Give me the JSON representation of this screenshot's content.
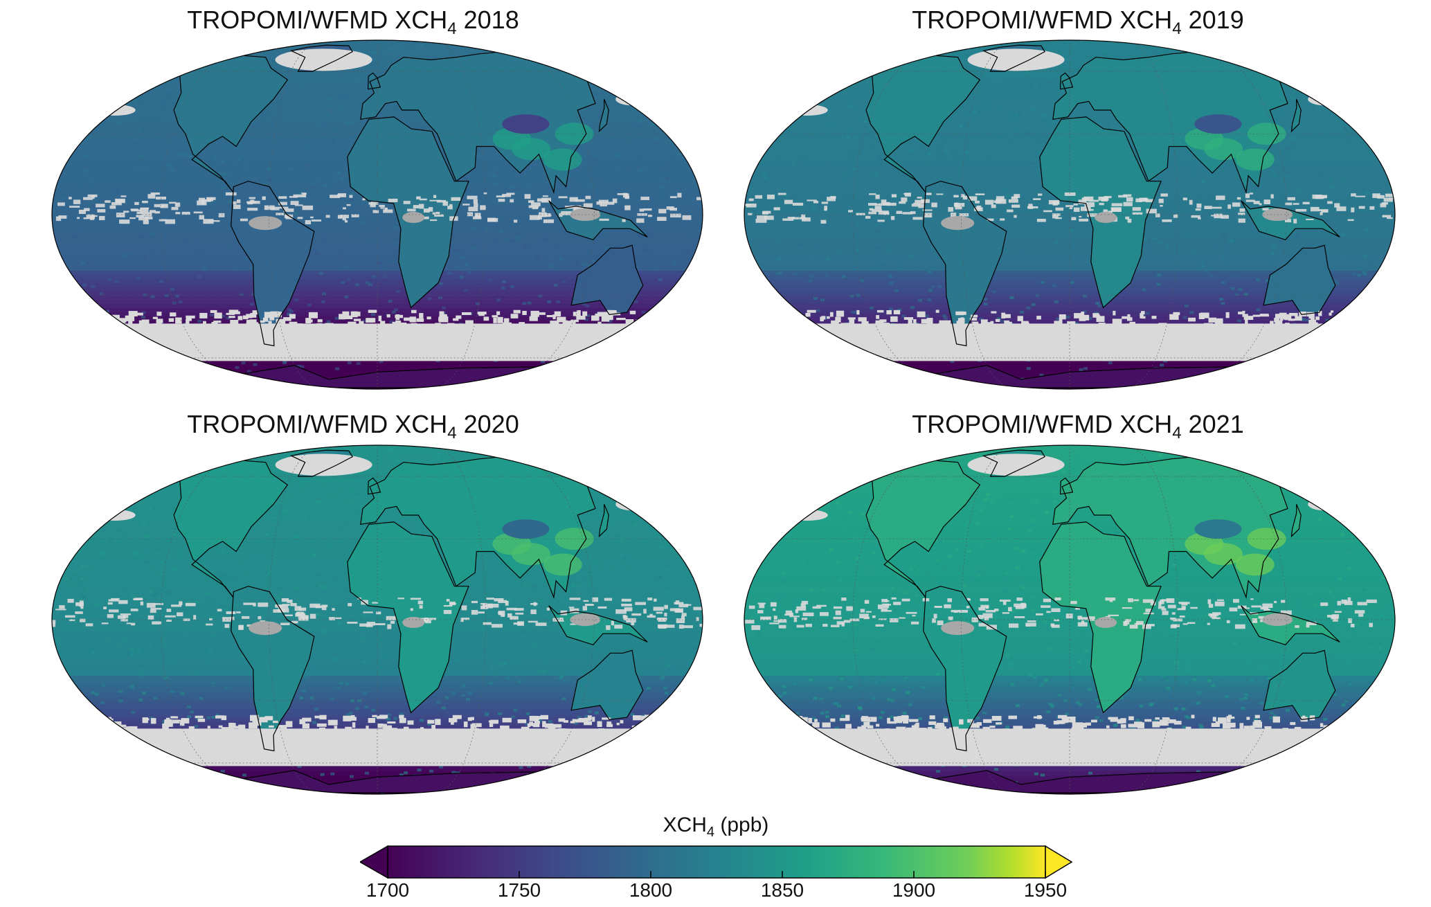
{
  "panels": [
    {
      "title_prefix": "TROPOMI/WFMD XCH",
      "title_sub": "4",
      "title_year": "2018",
      "mean_level": 0.42
    },
    {
      "title_prefix": "TROPOMI/WFMD XCH",
      "title_sub": "4",
      "title_year": "2019",
      "mean_level": 0.5
    },
    {
      "title_prefix": "TROPOMI/WFMD XCH",
      "title_sub": "4",
      "title_year": "2020",
      "mean_level": 0.58
    },
    {
      "title_prefix": "TROPOMI/WFMD XCH",
      "title_sub": "4",
      "title_year": "2021",
      "mean_level": 0.66
    }
  ],
  "colorbar": {
    "label_prefix": "XCH",
    "label_sub": "4",
    "label_suffix": " (ppb)",
    "min": 1700,
    "max": 1950,
    "ticks": [
      "1700",
      "1750",
      "1800",
      "1850",
      "1900",
      "1950"
    ],
    "colormap": "viridis",
    "extend": "both"
  },
  "colors": {
    "no_data": "#d9d9d9",
    "tropical_gap": "#a8a8a8",
    "coastline": "#000000"
  }
}
